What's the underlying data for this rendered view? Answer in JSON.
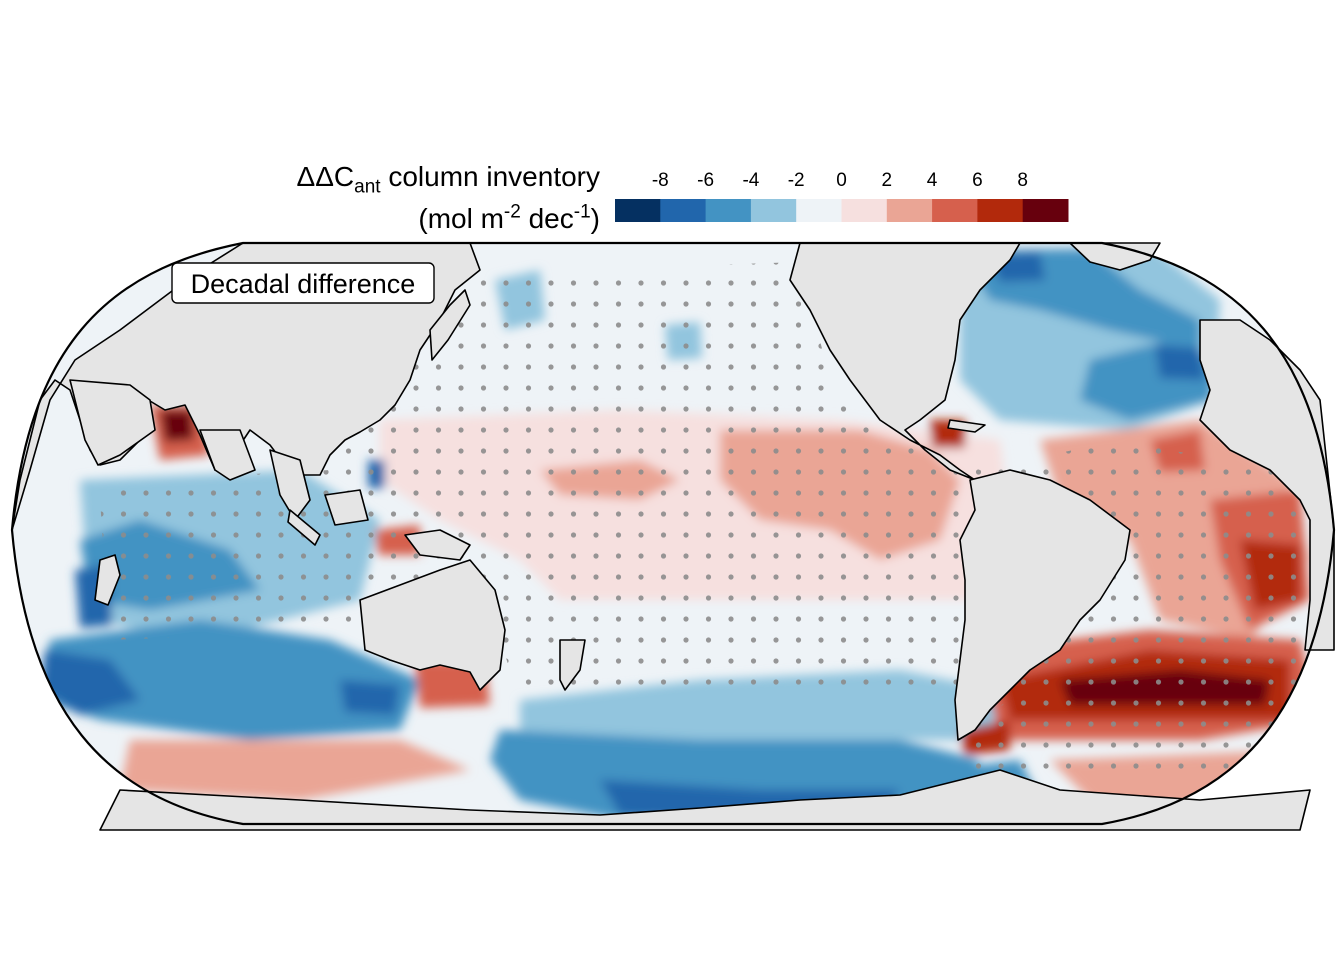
{
  "legend": {
    "title_prefix": "ΔΔC",
    "title_subscript": "ant",
    "title_suffix": " column inventory",
    "units_open": "(mol m",
    "units_exp1": "-2",
    "units_mid": " dec",
    "units_exp2": "-1",
    "units_close": ")",
    "ticks": [
      "-8",
      "-6",
      "-4",
      "-2",
      "0",
      "2",
      "4",
      "6",
      "8"
    ],
    "colors": [
      "#053061",
      "#2166ac",
      "#4393c3",
      "#92c5de",
      "#eef3f7",
      "#f6e0df",
      "#eaa595",
      "#d6604d",
      "#b2290c",
      "#67000d"
    ]
  },
  "map": {
    "panel_label": "Decadal difference",
    "land_color": "#e5e5e5",
    "coast_color": "#000000",
    "stipple_color": "#8c8c8c"
  }
}
